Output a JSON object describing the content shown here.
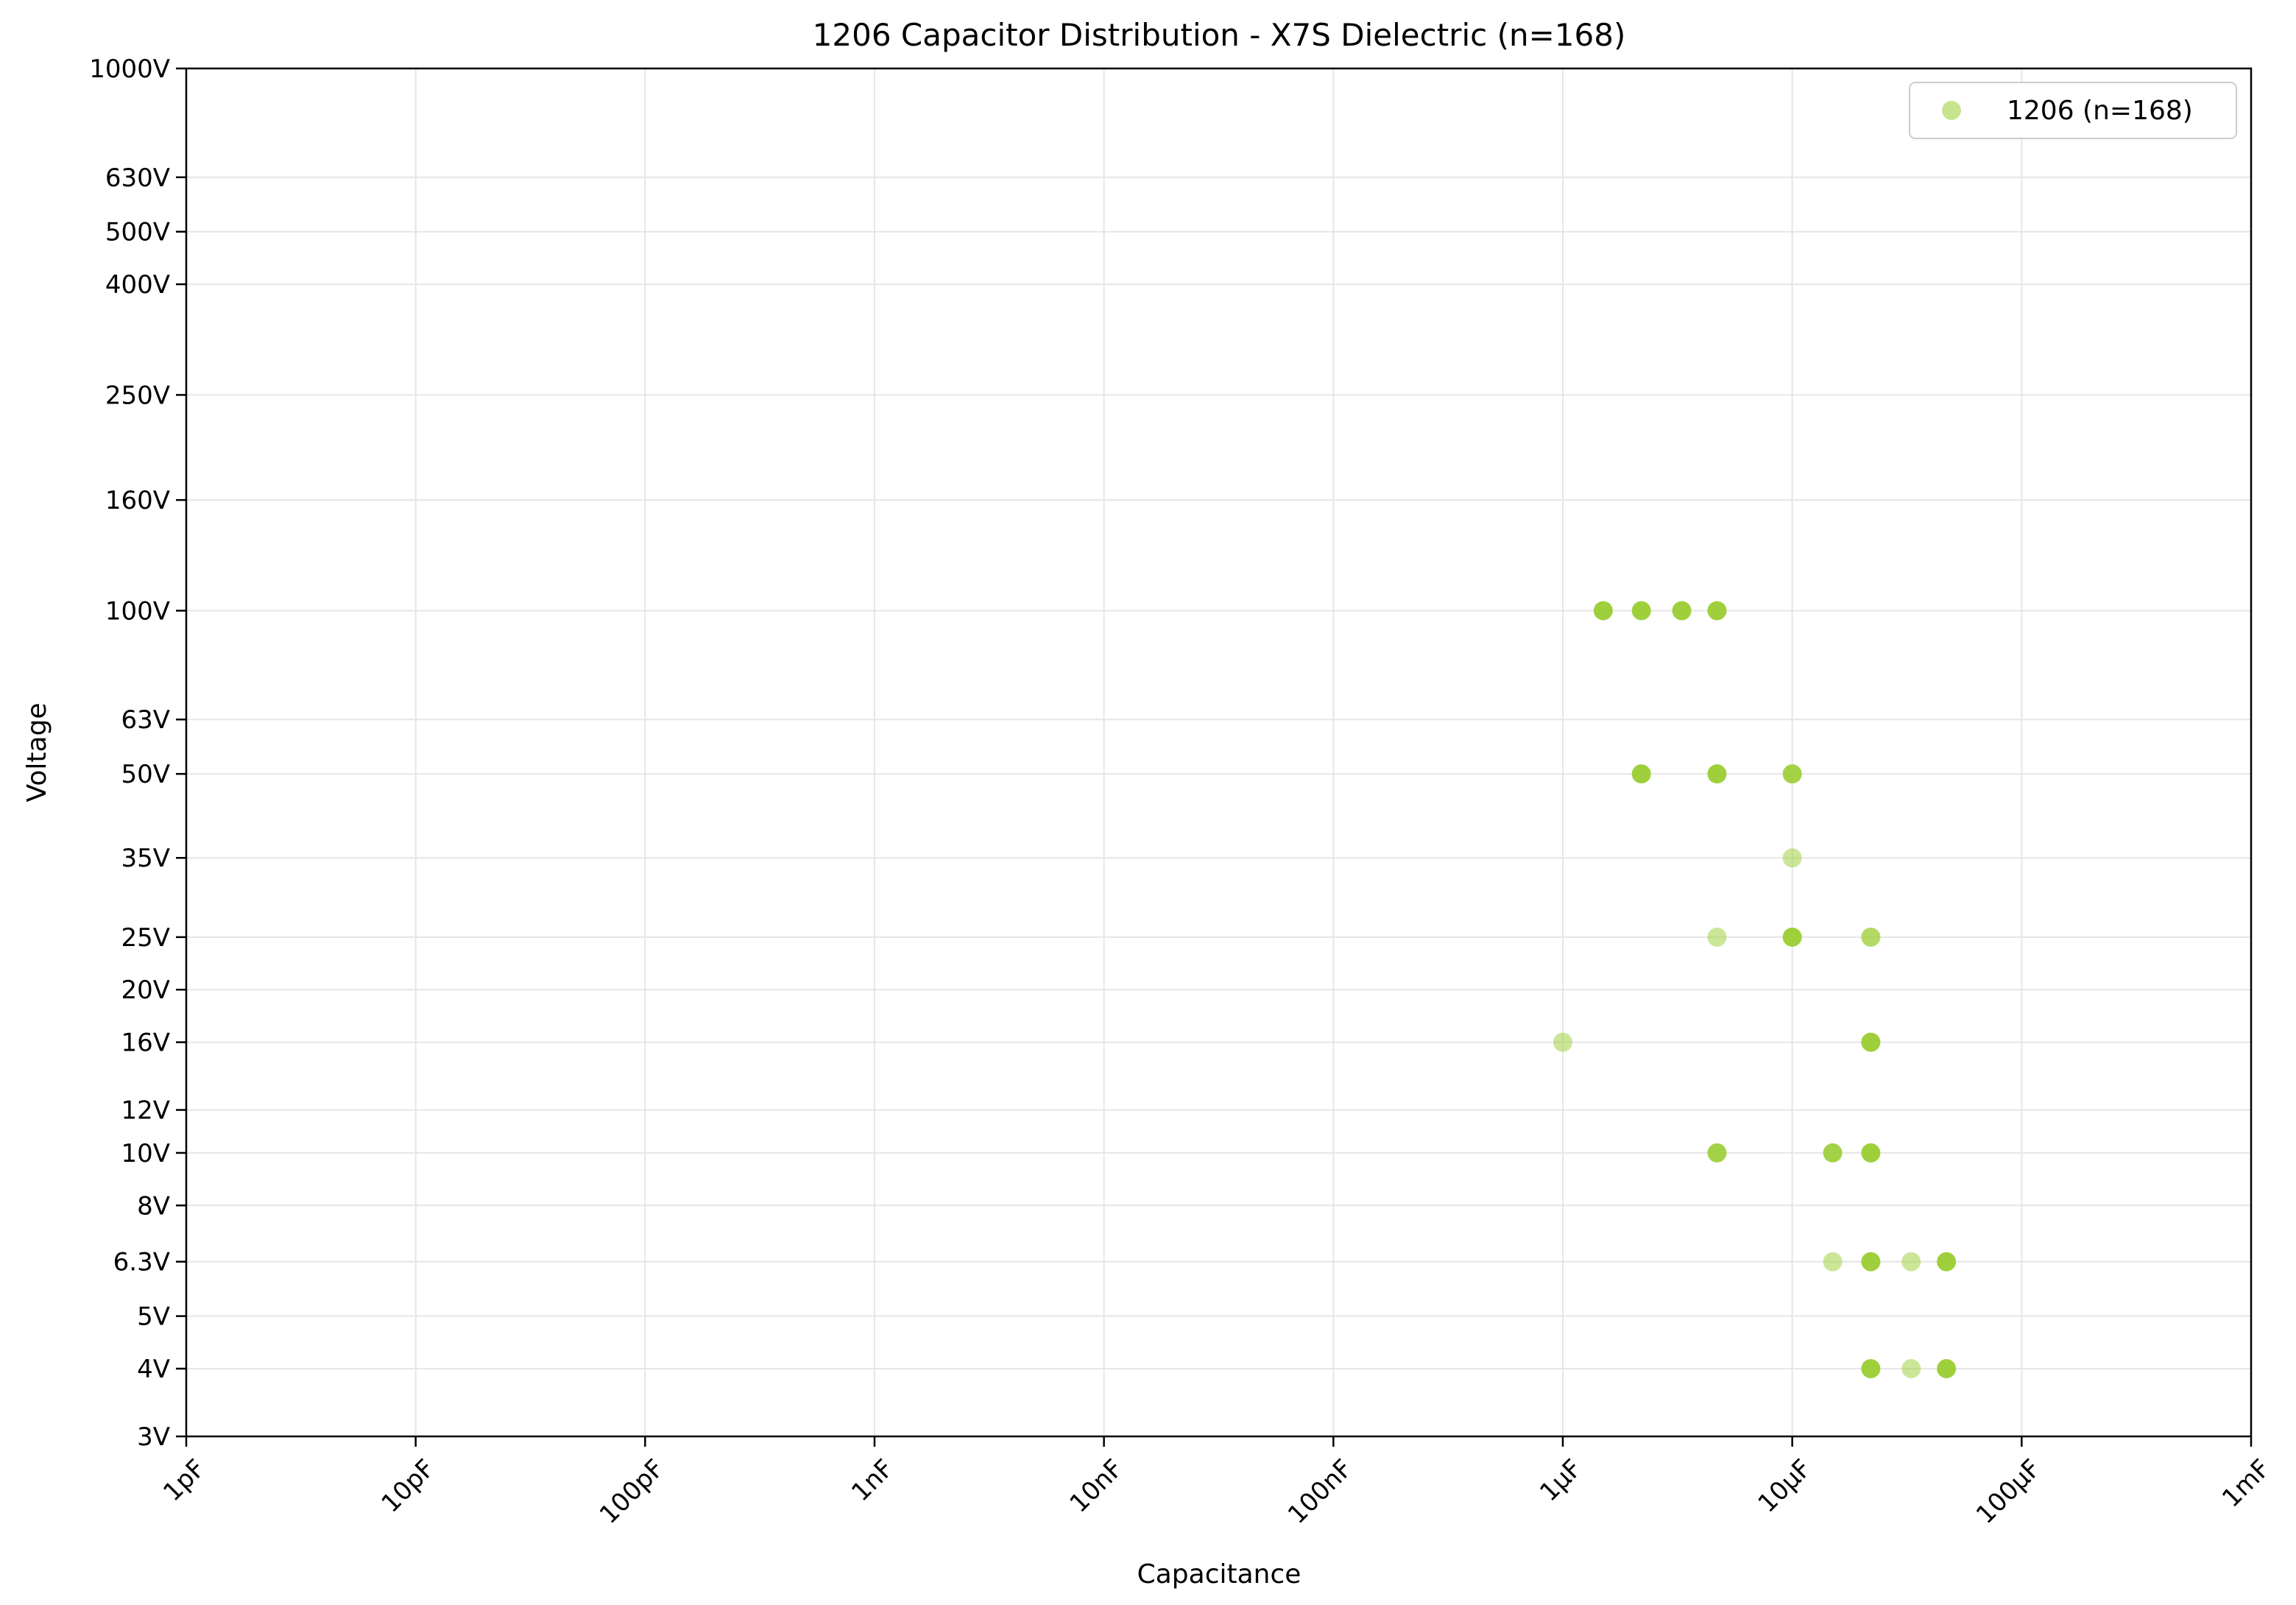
{
  "chart_data": {
    "type": "scatter",
    "title": "1206 Capacitor Distribution - X7S Dielectric (n=168)",
    "xlabel": "Capacitance",
    "ylabel": "Voltage",
    "x_scale": "log",
    "y_scale": "log",
    "x_unit": "F",
    "y_unit": "V",
    "xlim": [
      1e-12,
      0.001
    ],
    "ylim": [
      3,
      1000
    ],
    "x_ticks": [
      {
        "value": 1e-12,
        "label": "1pF"
      },
      {
        "value": 1e-11,
        "label": "10pF"
      },
      {
        "value": 1e-10,
        "label": "100pF"
      },
      {
        "value": 1e-09,
        "label": "1nF"
      },
      {
        "value": 1e-08,
        "label": "10nF"
      },
      {
        "value": 1e-07,
        "label": "100nF"
      },
      {
        "value": 1e-06,
        "label": "1µF"
      },
      {
        "value": 1e-05,
        "label": "10µF"
      },
      {
        "value": 0.0001,
        "label": "100µF"
      },
      {
        "value": 0.001,
        "label": "1mF"
      }
    ],
    "y_ticks": [
      {
        "value": 3,
        "label": "3V"
      },
      {
        "value": 4,
        "label": "4V"
      },
      {
        "value": 5,
        "label": "5V"
      },
      {
        "value": 6.3,
        "label": "6.3V"
      },
      {
        "value": 8,
        "label": "8V"
      },
      {
        "value": 10,
        "label": "10V"
      },
      {
        "value": 12,
        "label": "12V"
      },
      {
        "value": 16,
        "label": "16V"
      },
      {
        "value": 20,
        "label": "20V"
      },
      {
        "value": 25,
        "label": "25V"
      },
      {
        "value": 35,
        "label": "35V"
      },
      {
        "value": 50,
        "label": "50V"
      },
      {
        "value": 63,
        "label": "63V"
      },
      {
        "value": 100,
        "label": "100V"
      },
      {
        "value": 160,
        "label": "160V"
      },
      {
        "value": 250,
        "label": "250V"
      },
      {
        "value": 400,
        "label": "400V"
      },
      {
        "value": 500,
        "label": "500V"
      },
      {
        "value": 630,
        "label": "630V"
      },
      {
        "value": 1000,
        "label": "1000V"
      }
    ],
    "grid": true,
    "legend_position": "top-right",
    "series": [
      {
        "name": "1206 (n=168)",
        "color": "#9acd32",
        "points": [
          {
            "x": 1.5e-06,
            "y": 100,
            "density": 0.95
          },
          {
            "x": 2.2e-06,
            "y": 100,
            "density": 0.95
          },
          {
            "x": 3.3e-06,
            "y": 100,
            "density": 0.95
          },
          {
            "x": 4.7e-06,
            "y": 100,
            "density": 0.95
          },
          {
            "x": 2.2e-06,
            "y": 50,
            "density": 0.95
          },
          {
            "x": 4.7e-06,
            "y": 50,
            "density": 0.95
          },
          {
            "x": 1e-05,
            "y": 50,
            "density": 0.9
          },
          {
            "x": 1e-05,
            "y": 35,
            "density": 0.5
          },
          {
            "x": 4.7e-06,
            "y": 25,
            "density": 0.5
          },
          {
            "x": 1e-05,
            "y": 25,
            "density": 0.95
          },
          {
            "x": 2.2e-05,
            "y": 25,
            "density": 0.75
          },
          {
            "x": 1e-06,
            "y": 16,
            "density": 0.5
          },
          {
            "x": 2.2e-05,
            "y": 16,
            "density": 0.95
          },
          {
            "x": 4.7e-06,
            "y": 10,
            "density": 0.9
          },
          {
            "x": 1.5e-05,
            "y": 10,
            "density": 0.9
          },
          {
            "x": 2.2e-05,
            "y": 10,
            "density": 0.95
          },
          {
            "x": 1.5e-05,
            "y": 6.3,
            "density": 0.5
          },
          {
            "x": 2.2e-05,
            "y": 6.3,
            "density": 0.95
          },
          {
            "x": 3.3e-05,
            "y": 6.3,
            "density": 0.5
          },
          {
            "x": 4.7e-05,
            "y": 6.3,
            "density": 0.95
          },
          {
            "x": 2.2e-05,
            "y": 4,
            "density": 0.95
          },
          {
            "x": 3.3e-05,
            "y": 4,
            "density": 0.5
          },
          {
            "x": 4.7e-05,
            "y": 4,
            "density": 0.95
          }
        ]
      }
    ]
  }
}
